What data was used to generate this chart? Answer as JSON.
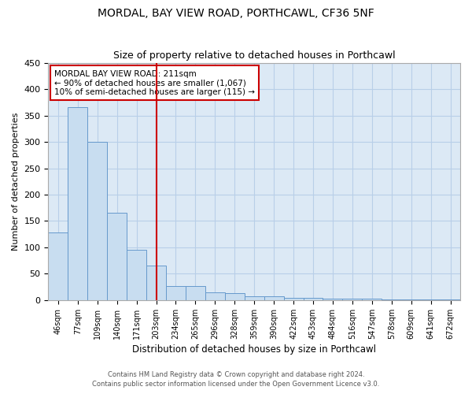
{
  "title1": "MORDAL, BAY VIEW ROAD, PORTHCAWL, CF36 5NF",
  "title2": "Size of property relative to detached houses in Porthcawl",
  "xlabel": "Distribution of detached houses by size in Porthcawl",
  "ylabel": "Number of detached properties",
  "bar_color": "#c8ddf0",
  "bar_edge_color": "#6699cc",
  "bg_color": "#dce9f5",
  "grid_color": "#b8cfe8",
  "annotation_box_color": "#cc0000",
  "vline_color": "#cc0000",
  "categories": [
    "46sqm",
    "77sqm",
    "109sqm",
    "140sqm",
    "171sqm",
    "203sqm",
    "234sqm",
    "265sqm",
    "296sqm",
    "328sqm",
    "359sqm",
    "390sqm",
    "422sqm",
    "453sqm",
    "484sqm",
    "516sqm",
    "547sqm",
    "578sqm",
    "609sqm",
    "641sqm",
    "672sqm"
  ],
  "values": [
    128,
    365,
    300,
    165,
    95,
    65,
    27,
    27,
    15,
    13,
    8,
    8,
    5,
    5,
    3,
    3,
    3,
    1,
    1,
    1,
    1
  ],
  "vline_x": 5,
  "annotation_line1": "MORDAL BAY VIEW ROAD: 211sqm",
  "annotation_line2": "← 90% of detached houses are smaller (1,067)",
  "annotation_line3": "10% of semi-detached houses are larger (115) →",
  "footer1": "Contains HM Land Registry data © Crown copyright and database right 2024.",
  "footer2": "Contains public sector information licensed under the Open Government Licence v3.0.",
  "ylim": [
    0,
    450
  ],
  "yticks": [
    0,
    50,
    100,
    150,
    200,
    250,
    300,
    350,
    400,
    450
  ]
}
